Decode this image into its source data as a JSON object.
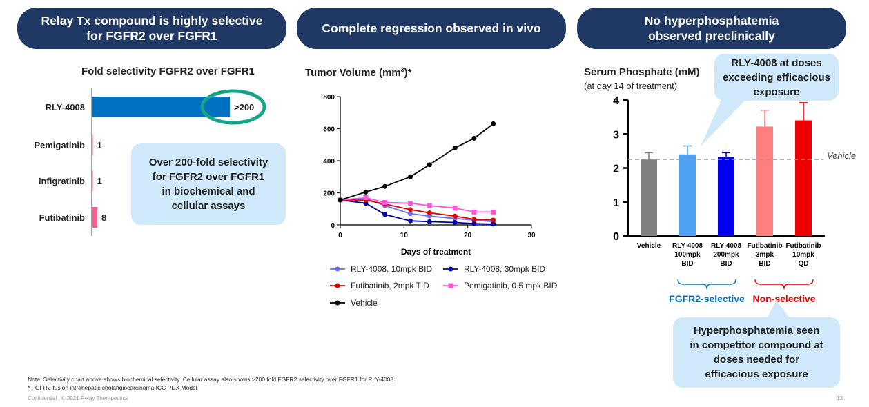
{
  "panels": {
    "left": {
      "line1": "Relay Tx compound is highly selective",
      "line2": "for FGFR2  over FGFR1"
    },
    "middle": {
      "line1": "Complete regression observed in vivo"
    },
    "right": {
      "line1": "No hyperphosphatemia",
      "line2": "observed preclinically"
    }
  },
  "colors": {
    "navy": "#1f3864",
    "callout": "#cfe8fa",
    "bar_blue": "#0070c0",
    "bar_pink": "#f06292",
    "ring": "#17a589",
    "gray": "#808080",
    "light_blue": "#4ea1f5",
    "royal_blue": "#0000ee",
    "salmon": "#ff7f7f",
    "red": "#ee0000",
    "fgfr2_blue": "#0070c0",
    "nonsel_red": "#e60000"
  },
  "callouts": {
    "selectivity": {
      "lines": [
        "Over 200-fold selectivity",
        "for FGFR2 over FGFR1",
        "in biochemical and",
        "cellular assays"
      ]
    },
    "rly_doses": {
      "lines": [
        "RLY-4008 at doses",
        "exceeding efficacious",
        "exposure"
      ]
    },
    "hyperphos": {
      "lines": [
        "Hyperphosphatemia seen",
        "in competitor compound at",
        "doses needed for",
        "efficacious exposure"
      ]
    }
  },
  "chart_data": [
    {
      "type": "bar",
      "orientation": "horizontal",
      "title": "Fold selectivity FGFR2 over FGFR1",
      "categories": [
        "RLY-4008",
        "Pemigatinib",
        "Infigratinib",
        "Futibatinib"
      ],
      "values": [
        200,
        1,
        1,
        8
      ],
      "value_labels": [
        ">200",
        "1",
        "1",
        "8"
      ],
      "xlim": [
        0,
        200
      ],
      "highlight": "RLY-4008"
    },
    {
      "type": "line",
      "title_prefix": "Tumor Volume (mm",
      "title_sup": "3",
      "title_suffix": ")*",
      "xlabel": "Days of treatment",
      "ylabel": "",
      "xlim": [
        0,
        30
      ],
      "ylim": [
        0,
        800
      ],
      "xticks": [
        0,
        10,
        20,
        30
      ],
      "yticks": [
        0,
        200,
        400,
        600,
        800
      ],
      "legend_position": "bottom",
      "series": [
        {
          "name": "RLY-4008, 10mpk BID",
          "color": "#6b6bff",
          "marker": "circle",
          "x": [
            0,
            4,
            7,
            11,
            14,
            18,
            21,
            24
          ],
          "y": [
            155,
            165,
            120,
            70,
            55,
            40,
            30,
            20
          ]
        },
        {
          "name": "RLY-4008, 30mpk BID",
          "color": "#0000a0",
          "marker": "circle",
          "x": [
            0,
            4,
            7,
            11,
            14,
            18,
            21,
            24
          ],
          "y": [
            155,
            135,
            65,
            25,
            20,
            15,
            8,
            5
          ]
        },
        {
          "name": "Futibatinib, 2mpk TID",
          "color": "#e00000",
          "marker": "circle",
          "x": [
            0,
            4,
            7,
            11,
            14,
            18,
            21,
            24
          ],
          "y": [
            155,
            155,
            130,
            95,
            75,
            55,
            35,
            30
          ]
        },
        {
          "name": "Pemigatinib, 0.5 mpk BID",
          "color": "#ff55dd",
          "marker": "square",
          "x": [
            0,
            4,
            7,
            11,
            14,
            18,
            21,
            24
          ],
          "y": [
            155,
            170,
            140,
            135,
            120,
            105,
            80,
            80
          ]
        },
        {
          "name": "Vehicle",
          "color": "#000000",
          "marker": "circle",
          "x": [
            0,
            4,
            7,
            11,
            14,
            18,
            21,
            24
          ],
          "y": [
            155,
            205,
            240,
            300,
            375,
            480,
            540,
            630
          ]
        }
      ]
    },
    {
      "type": "bar",
      "title": "Serum Phosphate (mM)",
      "subtitle": "(at day 14 of treatment)",
      "ylim": [
        0,
        4
      ],
      "yticks": [
        0,
        1,
        2,
        3,
        4
      ],
      "reference_line": {
        "value": 2.25,
        "label": "Vehicle"
      },
      "categories": [
        [
          "Vehicle"
        ],
        [
          "RLY-4008",
          "100mpk",
          "BID"
        ],
        [
          "RLY-4008",
          "200mpk",
          "BID"
        ],
        [
          "Futibatinib",
          "3mpk",
          "BID"
        ],
        [
          "Futibatinib",
          "10mpk",
          "QD"
        ]
      ],
      "values": [
        2.25,
        2.4,
        2.33,
        3.22,
        3.4
      ],
      "errors": [
        0.2,
        0.25,
        0.12,
        0.48,
        0.52
      ],
      "bar_colors": [
        "#808080",
        "#4ea1f5",
        "#0000ee",
        "#ff7f7f",
        "#ee0000"
      ],
      "groups": [
        {
          "label": "FGFR2-selective",
          "color": "#0070c0",
          "bars": [
            1,
            2
          ]
        },
        {
          "label": "Non-selective",
          "color": "#e60000",
          "bars": [
            3,
            4
          ]
        }
      ]
    }
  ],
  "footer": {
    "note": "Note: Selectivity chart above shows biochemical selectivity. Cellular assay also shows >200 fold FGFR2 selectivity over FGFR1 for RLY-4008",
    "footnote": "* FGFR2-fusion intrahepatic cholangiocarcinoma ICC PDX Model",
    "confidential": "Confidential | © 2021 Relay Therapeutics",
    "page_number": "13"
  }
}
